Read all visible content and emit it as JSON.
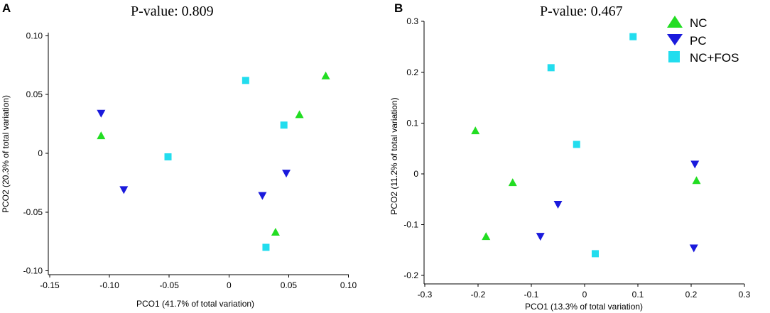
{
  "chart_data": [
    {
      "type": "scatter",
      "panel": "A",
      "title": "P-value:  0.809",
      "xlabel": "PCO1 (41.7% of total variation)",
      "ylabel": "PCO2 (20.3% of total variation)",
      "xlim": [
        -0.15,
        0.1
      ],
      "ylim": [
        -0.1,
        0.1
      ],
      "xticks": [
        -0.15,
        -0.1,
        -0.05,
        0,
        0.05,
        0.1
      ],
      "xtick_labels": [
        "-0.15",
        "-0.10",
        "-0.05",
        "0",
        "0.05",
        "0.10"
      ],
      "yticks": [
        0.1,
        0.05,
        0,
        -0.05,
        -0.1
      ],
      "ytick_labels": [
        "0.10",
        "0.05",
        "0",
        "-0.05",
        "-0.10"
      ],
      "series": [
        {
          "name": "NC",
          "marker": "triangle-up",
          "color": "#22dd22",
          "x": [
            -0.107,
            0.059,
            0.081,
            0.039
          ],
          "y": [
            0.015,
            0.033,
            0.066,
            -0.067
          ]
        },
        {
          "name": "PC",
          "marker": "triangle-down",
          "color": "#1a1adc",
          "x": [
            -0.107,
            -0.088,
            0.028,
            0.048
          ],
          "y": [
            0.034,
            -0.031,
            -0.036,
            -0.017
          ]
        },
        {
          "name": "NC+FOS",
          "marker": "square",
          "color": "#22ddee",
          "x": [
            -0.051,
            0.014,
            0.046,
            0.031
          ],
          "y": [
            -0.003,
            0.062,
            0.024,
            -0.08
          ]
        }
      ]
    },
    {
      "type": "scatter",
      "panel": "B",
      "title": "P-value:  0.467",
      "xlabel": "PCO1 (13.3% of total variation)",
      "ylabel": "PCO2 (11.2% of total variation)",
      "xlim": [
        -0.3,
        0.3
      ],
      "ylim": [
        -0.2,
        0.3
      ],
      "xticks": [
        -0.3,
        -0.2,
        -0.1,
        0,
        0.1,
        0.2,
        0.3
      ],
      "xtick_labels": [
        "-0.3",
        "-0.2",
        "-0.1",
        "0",
        "0.1",
        "0.2",
        "0.3"
      ],
      "yticks": [
        0.3,
        0.2,
        0.1,
        0,
        -0.1,
        -0.2
      ],
      "ytick_labels": [
        "0.3",
        "0.2",
        "0.1",
        "0",
        "-0.1",
        "-0.2"
      ],
      "legend_position": "top-right",
      "series": [
        {
          "name": "NC",
          "marker": "triangle-up",
          "color": "#22dd22",
          "x": [
            -0.205,
            -0.185,
            -0.135,
            0.21
          ],
          "y": [
            0.085,
            -0.123,
            -0.017,
            -0.013
          ]
        },
        {
          "name": "PC",
          "marker": "triangle-down",
          "color": "#1a1adc",
          "x": [
            -0.083,
            -0.05,
            0.205,
            0.207
          ],
          "y": [
            -0.123,
            -0.06,
            -0.146,
            0.019
          ]
        },
        {
          "name": "NC+FOS",
          "marker": "square",
          "color": "#22ddee",
          "x": [
            -0.063,
            0.091,
            -0.015,
            0.02
          ],
          "y": [
            0.209,
            0.27,
            0.058,
            -0.157
          ]
        }
      ]
    }
  ]
}
